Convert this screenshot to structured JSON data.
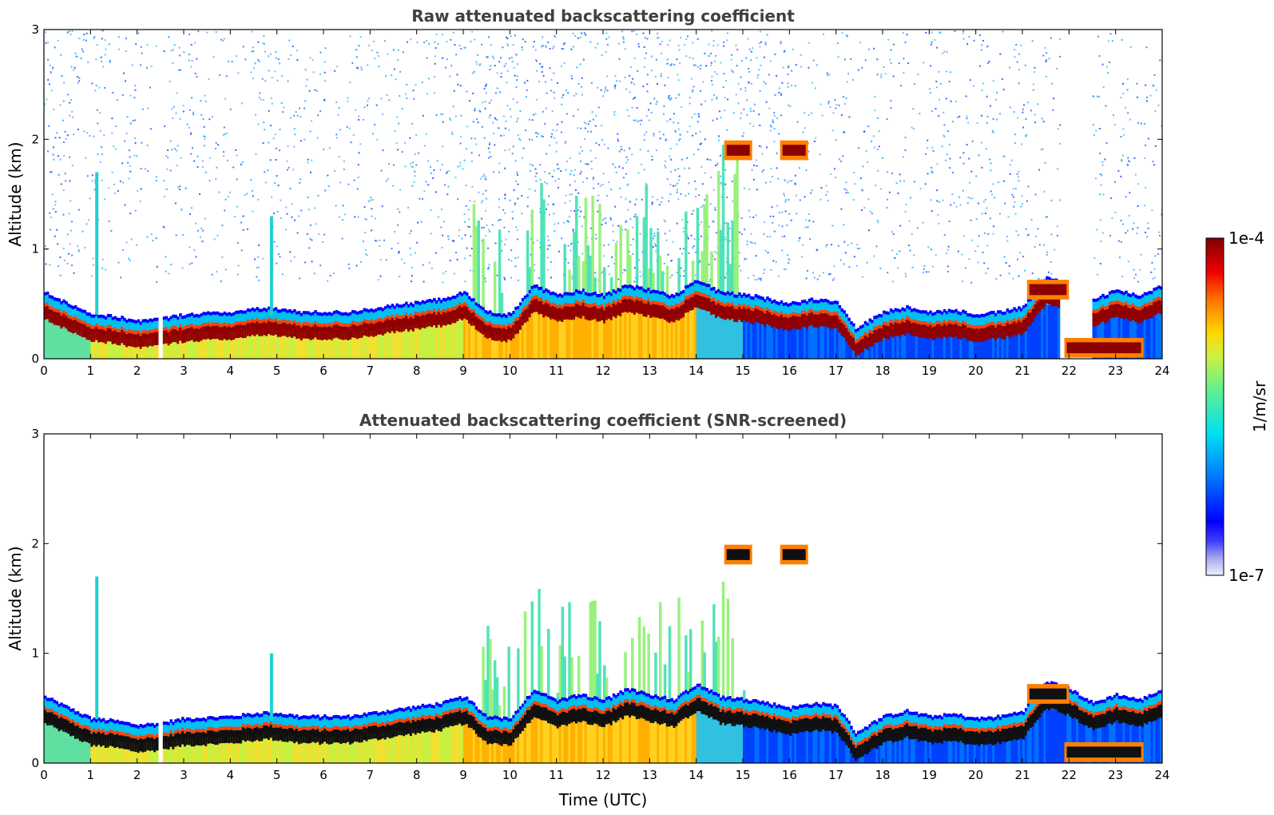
{
  "chart_data": [
    {
      "type": "heatmap",
      "title": "Raw attenuated backscattering coefficient",
      "xlabel": "",
      "ylabel": "Altitude (km)",
      "xlim": [
        0,
        24
      ],
      "ylim": [
        0,
        3
      ],
      "xticks": [
        "0",
        "1",
        "2",
        "3",
        "4",
        "5",
        "6",
        "7",
        "8",
        "9",
        "10",
        "11",
        "12",
        "13",
        "14",
        "15",
        "16",
        "17",
        "18",
        "19",
        "20",
        "21",
        "22",
        "23",
        "24"
      ],
      "yticks": [
        "0",
        "1",
        "2",
        "3"
      ],
      "screened": false,
      "boundary_layer_top_km": [
        [
          0,
          0.48
        ],
        [
          0.5,
          0.38
        ],
        [
          1,
          0.28
        ],
        [
          1.5,
          0.26
        ],
        [
          2,
          0.22
        ],
        [
          2.5,
          0.24
        ],
        [
          3,
          0.28
        ],
        [
          4,
          0.3
        ],
        [
          4.8,
          0.34
        ],
        [
          5.5,
          0.3
        ],
        [
          6.5,
          0.3
        ],
        [
          7.5,
          0.36
        ],
        [
          8.5,
          0.42
        ],
        [
          9,
          0.48
        ],
        [
          9.5,
          0.3
        ],
        [
          10,
          0.28
        ],
        [
          10.5,
          0.55
        ],
        [
          11,
          0.45
        ],
        [
          11.5,
          0.5
        ],
        [
          12,
          0.45
        ],
        [
          12.5,
          0.55
        ],
        [
          13,
          0.5
        ],
        [
          13.5,
          0.45
        ],
        [
          14,
          0.6
        ],
        [
          14.5,
          0.48
        ],
        [
          15.2,
          0.45
        ],
        [
          16,
          0.38
        ],
        [
          16.5,
          0.42
        ],
        [
          17,
          0.4
        ],
        [
          17.4,
          0.15
        ],
        [
          18,
          0.3
        ],
        [
          18.5,
          0.35
        ],
        [
          19,
          0.3
        ],
        [
          19.5,
          0.32
        ],
        [
          20,
          0.28
        ],
        [
          20.5,
          0.3
        ],
        [
          21,
          0.35
        ],
        [
          21.5,
          0.62
        ],
        [
          22,
          0.55
        ],
        [
          22.5,
          0.42
        ],
        [
          23,
          0.5
        ],
        [
          23.5,
          0.45
        ],
        [
          24,
          0.55
        ]
      ],
      "cloud_features_km": [
        {
          "time": [
            14.6,
            15.2
          ],
          "altitude": [
            1.85,
            1.95
          ]
        },
        {
          "time": [
            15.8,
            16.4
          ],
          "altitude": [
            1.85,
            1.95
          ]
        },
        {
          "time": [
            21.1,
            22.0
          ],
          "altitude": [
            0.58,
            0.68
          ]
        },
        {
          "time": [
            21.9,
            23.6
          ],
          "altitude": [
            0.05,
            0.15
          ]
        }
      ],
      "data_gaps_utc": [
        [
          2.45,
          2.55
        ],
        [
          21.8,
          22.5
        ]
      ],
      "colorscale": "jet"
    },
    {
      "type": "heatmap",
      "title": "Attenuated backscattering coefficient (SNR-screened)",
      "xlabel": "Time (UTC)",
      "ylabel": "Altitude (km)",
      "xlim": [
        0,
        24
      ],
      "ylim": [
        0,
        3
      ],
      "xticks": [
        "0",
        "1",
        "2",
        "3",
        "4",
        "5",
        "6",
        "7",
        "8",
        "9",
        "10",
        "11",
        "12",
        "13",
        "14",
        "15",
        "16",
        "17",
        "18",
        "19",
        "20",
        "21",
        "22",
        "23",
        "24"
      ],
      "yticks": [
        "0",
        "1",
        "2",
        "3"
      ],
      "screened": true,
      "boundary_layer_top_km": [
        [
          0,
          0.48
        ],
        [
          0.5,
          0.38
        ],
        [
          1,
          0.28
        ],
        [
          1.5,
          0.26
        ],
        [
          2,
          0.22
        ],
        [
          2.5,
          0.24
        ],
        [
          3,
          0.28
        ],
        [
          4,
          0.3
        ],
        [
          4.8,
          0.34
        ],
        [
          5.5,
          0.3
        ],
        [
          6.5,
          0.3
        ],
        [
          7.5,
          0.36
        ],
        [
          8.5,
          0.42
        ],
        [
          9,
          0.48
        ],
        [
          9.5,
          0.3
        ],
        [
          10,
          0.28
        ],
        [
          10.5,
          0.55
        ],
        [
          11,
          0.45
        ],
        [
          11.5,
          0.5
        ],
        [
          12,
          0.45
        ],
        [
          12.5,
          0.55
        ],
        [
          13,
          0.5
        ],
        [
          13.5,
          0.45
        ],
        [
          14,
          0.6
        ],
        [
          14.5,
          0.48
        ],
        [
          15.2,
          0.45
        ],
        [
          16,
          0.38
        ],
        [
          16.5,
          0.42
        ],
        [
          17,
          0.4
        ],
        [
          17.4,
          0.15
        ],
        [
          18,
          0.3
        ],
        [
          18.5,
          0.35
        ],
        [
          19,
          0.3
        ],
        [
          19.5,
          0.32
        ],
        [
          20,
          0.28
        ],
        [
          20.5,
          0.3
        ],
        [
          21,
          0.35
        ],
        [
          21.5,
          0.62
        ],
        [
          22,
          0.55
        ],
        [
          22.5,
          0.42
        ],
        [
          23,
          0.5
        ],
        [
          23.5,
          0.45
        ],
        [
          24,
          0.55
        ]
      ],
      "cloud_features_km": [
        {
          "time": [
            14.6,
            15.2
          ],
          "altitude": [
            1.85,
            1.95
          ]
        },
        {
          "time": [
            15.8,
            16.4
          ],
          "altitude": [
            1.85,
            1.95
          ]
        },
        {
          "time": [
            21.1,
            22.0
          ],
          "altitude": [
            0.58,
            0.68
          ]
        },
        {
          "time": [
            21.9,
            23.6
          ],
          "altitude": [
            0.05,
            0.15
          ]
        }
      ],
      "data_gaps_utc": [
        [
          2.45,
          2.55
        ]
      ],
      "colorscale": "jet"
    }
  ],
  "colorbar": {
    "label": "1/m/sr",
    "max_label": "1e-4",
    "min_label": "1e-7",
    "range": [
      1e-07,
      0.0001
    ],
    "scale": "log",
    "colors": [
      "#e8e8f8",
      "#b8b8f0",
      "#7070f0",
      "#0000ff",
      "#0060ff",
      "#00c0ff",
      "#30e0d0",
      "#80f080",
      "#e0f040",
      "#ffd000",
      "#ff8000",
      "#ff2000",
      "#c00000",
      "#800000"
    ]
  }
}
